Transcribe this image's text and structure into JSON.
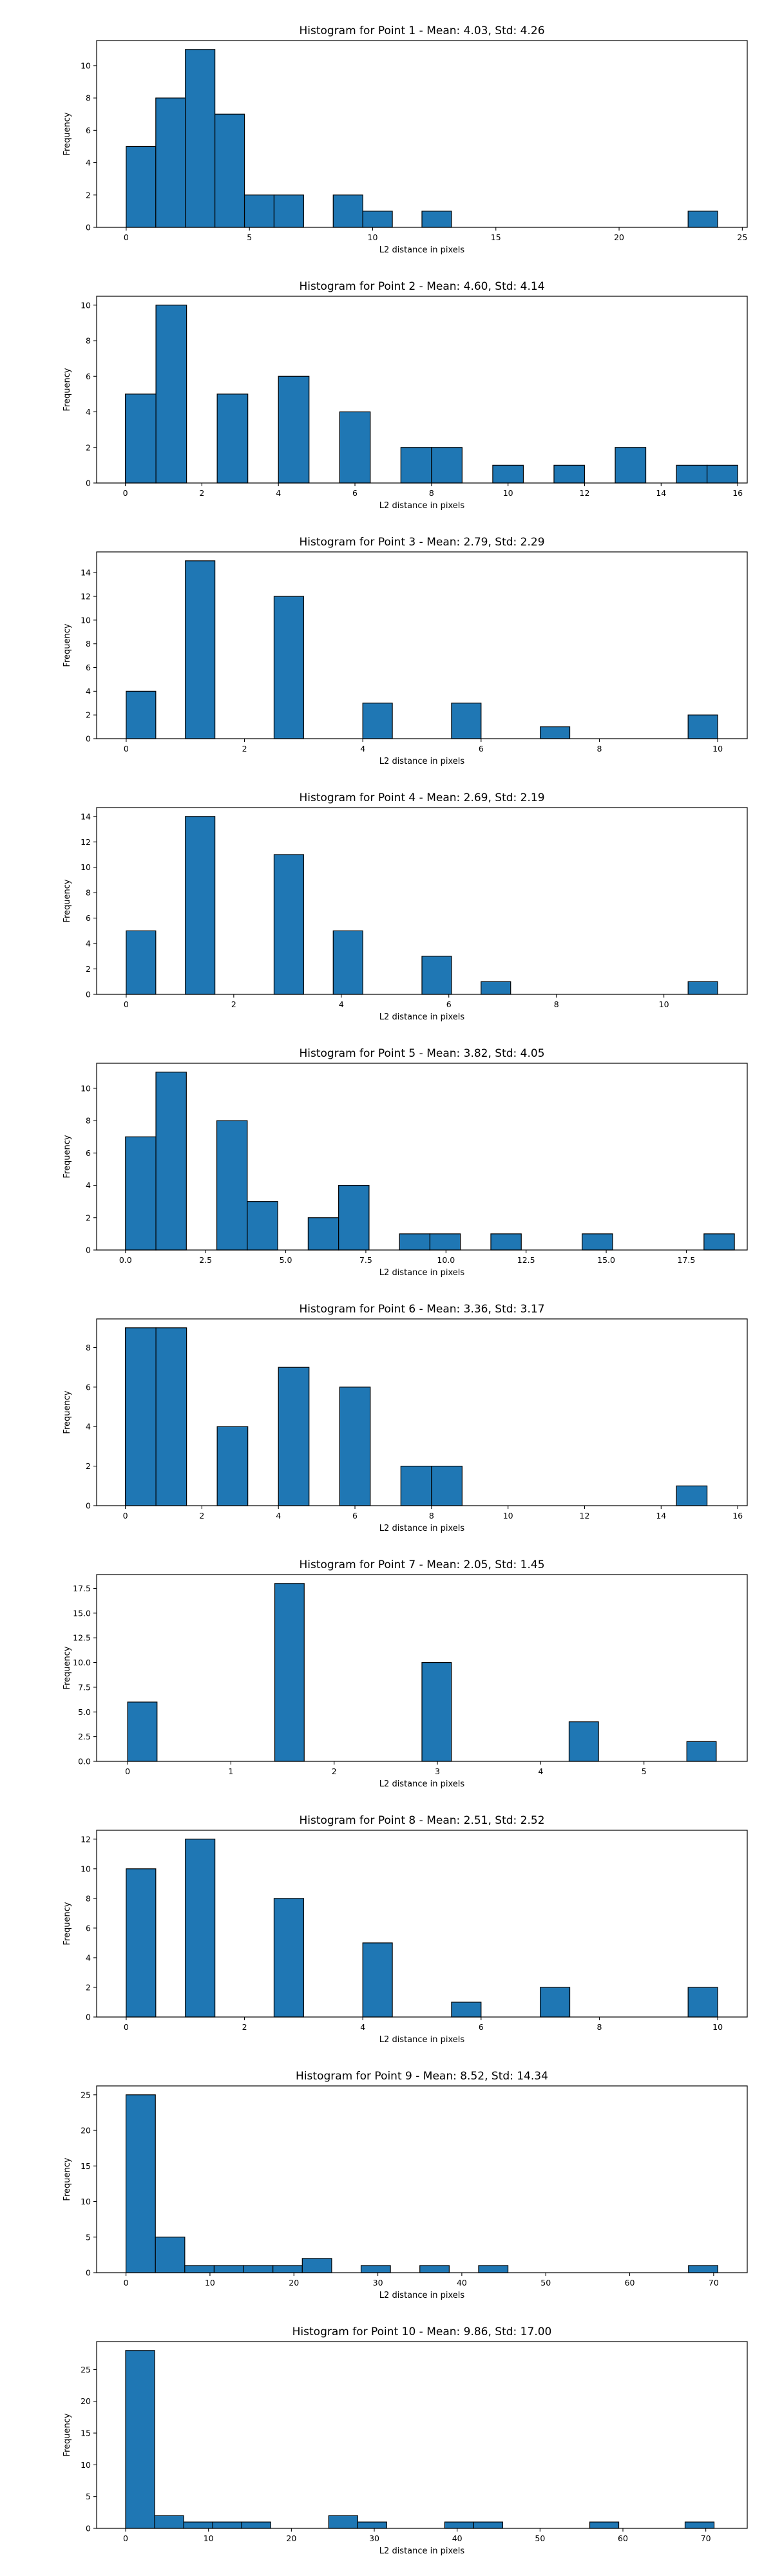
{
  "chart_data": [
    {
      "type": "bar",
      "title": "Histogram for Point 1 - Mean: 4.03, Std: 4.26",
      "xlabel": "L2 distance in pixels",
      "ylabel": "Frequency",
      "xlim": [
        -1.2,
        25.2
      ],
      "ylim": [
        0,
        11.55
      ],
      "xticks": [
        0,
        5,
        10,
        15,
        20,
        25
      ],
      "yticks": [
        0,
        2,
        4,
        6,
        8,
        10
      ],
      "bin_width": 1.2,
      "bins": [
        {
          "start": 0.0,
          "value": 5
        },
        {
          "start": 1.2,
          "value": 8
        },
        {
          "start": 2.4,
          "value": 11
        },
        {
          "start": 3.6,
          "value": 7
        },
        {
          "start": 4.8,
          "value": 2
        },
        {
          "start": 6.0,
          "value": 2
        },
        {
          "start": 8.4,
          "value": 2
        },
        {
          "start": 9.6,
          "value": 1
        },
        {
          "start": 12.0,
          "value": 1
        },
        {
          "start": 22.8,
          "value": 1
        }
      ]
    },
    {
      "type": "bar",
      "title": "Histogram for Point 2 - Mean: 4.60, Std: 4.14",
      "xlabel": "L2 distance in pixels",
      "ylabel": "Frequency",
      "xlim": [
        -0.75,
        16.25
      ],
      "ylim": [
        0,
        10.5
      ],
      "xticks": [
        0,
        2,
        4,
        6,
        8,
        10,
        12,
        14,
        16
      ],
      "yticks": [
        0,
        2,
        4,
        6,
        8,
        10
      ],
      "bin_width": 0.8,
      "bins": [
        {
          "start": 0.0,
          "value": 5
        },
        {
          "start": 0.8,
          "value": 10
        },
        {
          "start": 2.4,
          "value": 5
        },
        {
          "start": 4.0,
          "value": 6
        },
        {
          "start": 5.6,
          "value": 4
        },
        {
          "start": 7.2,
          "value": 2
        },
        {
          "start": 8.0,
          "value": 2
        },
        {
          "start": 9.6,
          "value": 1
        },
        {
          "start": 11.2,
          "value": 1
        },
        {
          "start": 12.8,
          "value": 2
        },
        {
          "start": 14.4,
          "value": 1
        },
        {
          "start": 15.2,
          "value": 1
        }
      ]
    },
    {
      "type": "bar",
      "title": "Histogram for Point 3 - Mean: 2.79, Std: 2.29",
      "xlabel": "L2 distance in pixels",
      "ylabel": "Frequency",
      "xlim": [
        -0.5,
        10.5
      ],
      "ylim": [
        0,
        15.75
      ],
      "xticks": [
        0,
        2,
        4,
        6,
        8,
        10
      ],
      "yticks": [
        0,
        2,
        4,
        6,
        8,
        10,
        12,
        14
      ],
      "bin_width": 0.5,
      "bins": [
        {
          "start": 0.0,
          "value": 4
        },
        {
          "start": 1.0,
          "value": 15
        },
        {
          "start": 2.5,
          "value": 12
        },
        {
          "start": 4.0,
          "value": 3
        },
        {
          "start": 5.5,
          "value": 3
        },
        {
          "start": 7.0,
          "value": 1
        },
        {
          "start": 9.5,
          "value": 2
        }
      ]
    },
    {
      "type": "bar",
      "title": "Histogram for Point 4 - Mean: 2.69, Std: 2.19",
      "xlabel": "L2 distance in pixels",
      "ylabel": "Frequency",
      "xlim": [
        -0.55,
        11.55
      ],
      "ylim": [
        0,
        14.7
      ],
      "xticks": [
        0,
        2,
        4,
        6,
        8,
        10
      ],
      "yticks": [
        0,
        2,
        4,
        6,
        8,
        10,
        12,
        14
      ],
      "bin_width": 0.55,
      "bins": [
        {
          "start": 0.0,
          "value": 5
        },
        {
          "start": 1.1,
          "value": 14
        },
        {
          "start": 2.75,
          "value": 11
        },
        {
          "start": 3.85,
          "value": 5
        },
        {
          "start": 5.5,
          "value": 3
        },
        {
          "start": 6.6,
          "value": 1
        },
        {
          "start": 10.45,
          "value": 1
        }
      ]
    },
    {
      "type": "bar",
      "title": "Histogram for Point 5 - Mean: 3.82, Std: 4.05",
      "xlabel": "L2 distance in pixels",
      "ylabel": "Frequency",
      "xlim": [
        -0.9,
        19.4
      ],
      "ylim": [
        0,
        11.55
      ],
      "xticks": [
        0.0,
        2.5,
        5.0,
        7.5,
        10.0,
        12.5,
        15.0,
        17.5
      ],
      "yticks": [
        0,
        2,
        4,
        6,
        8,
        10
      ],
      "bin_width": 0.95,
      "bins": [
        {
          "start": 0.0,
          "value": 7
        },
        {
          "start": 0.95,
          "value": 11
        },
        {
          "start": 2.85,
          "value": 8
        },
        {
          "start": 3.8,
          "value": 3
        },
        {
          "start": 5.7,
          "value": 2
        },
        {
          "start": 6.65,
          "value": 4
        },
        {
          "start": 8.55,
          "value": 1
        },
        {
          "start": 9.5,
          "value": 1
        },
        {
          "start": 11.4,
          "value": 1
        },
        {
          "start": 14.25,
          "value": 1
        },
        {
          "start": 18.05,
          "value": 1
        }
      ]
    },
    {
      "type": "bar",
      "title": "Histogram for Point 6 - Mean: 3.36, Std: 3.17",
      "xlabel": "L2 distance in pixels",
      "ylabel": "Frequency",
      "xlim": [
        -0.75,
        16.25
      ],
      "ylim": [
        0,
        9.45
      ],
      "xticks": [
        0,
        2,
        4,
        6,
        8,
        10,
        12,
        14,
        16
      ],
      "yticks": [
        0,
        2,
        4,
        6,
        8
      ],
      "bin_width": 0.8,
      "bins": [
        {
          "start": 0.0,
          "value": 9
        },
        {
          "start": 0.8,
          "value": 9
        },
        {
          "start": 2.4,
          "value": 4
        },
        {
          "start": 4.0,
          "value": 7
        },
        {
          "start": 5.6,
          "value": 6
        },
        {
          "start": 7.2,
          "value": 2
        },
        {
          "start": 8.0,
          "value": 2
        },
        {
          "start": 14.4,
          "value": 1
        }
      ]
    },
    {
      "type": "bar",
      "title": "Histogram for Point 7 - Mean: 2.05, Std: 1.45",
      "xlabel": "L2 distance in pixels",
      "ylabel": "Frequency",
      "xlim": [
        -0.3,
        6.0
      ],
      "ylim": [
        0,
        18.9
      ],
      "xticks": [
        0,
        1,
        2,
        3,
        4,
        5
      ],
      "yticks": [
        0.0,
        2.5,
        5.0,
        7.5,
        10.0,
        12.5,
        15.0,
        17.5
      ],
      "bin_width": 0.285,
      "bins": [
        {
          "start": 0.0,
          "value": 6
        },
        {
          "start": 1.425,
          "value": 18
        },
        {
          "start": 2.85,
          "value": 10
        },
        {
          "start": 4.275,
          "value": 4
        },
        {
          "start": 5.415,
          "value": 2
        }
      ]
    },
    {
      "type": "bar",
      "title": "Histogram for Point 8 - Mean: 2.51, Std: 2.52",
      "xlabel": "L2 distance in pixels",
      "ylabel": "Frequency",
      "xlim": [
        -0.5,
        10.5
      ],
      "ylim": [
        0,
        12.6
      ],
      "xticks": [
        0,
        2,
        4,
        6,
        8,
        10
      ],
      "yticks": [
        0,
        2,
        4,
        6,
        8,
        10,
        12
      ],
      "bin_width": 0.5,
      "bins": [
        {
          "start": 0.0,
          "value": 10
        },
        {
          "start": 1.0,
          "value": 12
        },
        {
          "start": 2.5,
          "value": 8
        },
        {
          "start": 4.0,
          "value": 5
        },
        {
          "start": 5.5,
          "value": 1
        },
        {
          "start": 7.0,
          "value": 2
        },
        {
          "start": 9.5,
          "value": 2
        }
      ]
    },
    {
      "type": "bar",
      "title": "Histogram for Point 9 - Mean: 8.52, Std: 14.34",
      "xlabel": "L2 distance in pixels",
      "ylabel": "Frequency",
      "xlim": [
        -3.5,
        74.0
      ],
      "ylim": [
        0,
        26.25
      ],
      "xticks": [
        0,
        10,
        20,
        30,
        40,
        50,
        60,
        70
      ],
      "yticks": [
        0,
        5,
        10,
        15,
        20,
        25
      ],
      "bin_width": 3.5,
      "bins": [
        {
          "start": 0.0,
          "value": 25
        },
        {
          "start": 3.5,
          "value": 5
        },
        {
          "start": 7.0,
          "value": 1
        },
        {
          "start": 10.5,
          "value": 1
        },
        {
          "start": 14.0,
          "value": 1
        },
        {
          "start": 17.5,
          "value": 1
        },
        {
          "start": 21.0,
          "value": 2
        },
        {
          "start": 28.0,
          "value": 1
        },
        {
          "start": 35.0,
          "value": 1
        },
        {
          "start": 42.0,
          "value": 1
        },
        {
          "start": 67.0,
          "value": 1
        }
      ]
    },
    {
      "type": "bar",
      "title": "Histogram for Point 10 - Mean: 9.86, Std: 17.00",
      "xlabel": "L2 distance in pixels",
      "ylabel": "Frequency",
      "xlim": [
        -3.5,
        75.0
      ],
      "ylim": [
        0,
        29.4
      ],
      "xticks": [
        0,
        10,
        20,
        30,
        40,
        50,
        60,
        70
      ],
      "yticks": [
        0,
        5,
        10,
        15,
        20,
        25
      ],
      "bin_width": 3.5,
      "bins": [
        {
          "start": 0.0,
          "value": 28
        },
        {
          "start": 3.5,
          "value": 2
        },
        {
          "start": 7.0,
          "value": 1
        },
        {
          "start": 10.5,
          "value": 1
        },
        {
          "start": 14.0,
          "value": 1
        },
        {
          "start": 24.5,
          "value": 2
        },
        {
          "start": 28.0,
          "value": 1
        },
        {
          "start": 38.5,
          "value": 1
        },
        {
          "start": 42.0,
          "value": 1
        },
        {
          "start": 56.0,
          "value": 1
        },
        {
          "start": 67.5,
          "value": 1
        }
      ]
    }
  ]
}
